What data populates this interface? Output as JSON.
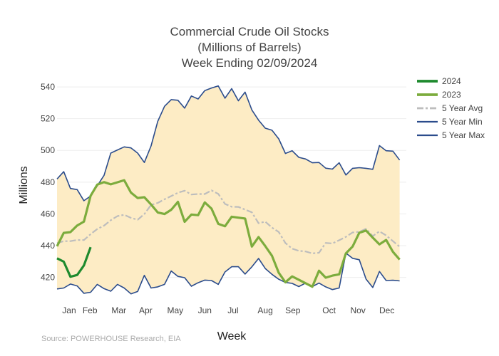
{
  "chart_data": {
    "type": "line",
    "title_lines": [
      "Commercial Crude Oil Stocks",
      "(Millions of Barrels)",
      "Week Ending 02/09/2024"
    ],
    "xlabel": "Week",
    "ylabel": "Millions",
    "source": "Source: POWERHOUSE Research, EIA",
    "x_tick_labels": [
      "Jan",
      "Feb",
      "Mar",
      "Apr",
      "May",
      "Jun",
      "Jul",
      "Aug",
      "Sep",
      "Oct",
      "Nov",
      "Dec"
    ],
    "y_ticks": [
      420,
      440,
      460,
      480,
      500,
      520,
      540
    ],
    "ylim": [
      405,
      549
    ],
    "xlim": [
      1,
      53
    ],
    "grid": "horizontal",
    "legend_position": "top-right",
    "x_unit": "week",
    "band": {
      "lower": "5 Year Min",
      "upper": "5 Year Max",
      "color": "#fdecc5"
    },
    "series": [
      {
        "name": "2024",
        "color": "#1e8a2e",
        "dash": "solid",
        "width": 3.2,
        "x": [
          1,
          2,
          3,
          4,
          5,
          6
        ],
        "values": [
          432.0,
          429.9,
          420.4,
          421.5,
          427.5,
          439.0
        ]
      },
      {
        "name": "2023",
        "color": "#7cac3d",
        "dash": "solid",
        "width": 3.2,
        "x": [
          1,
          2,
          3,
          4,
          5,
          6,
          7,
          8,
          9,
          10,
          11,
          12,
          13,
          14,
          15,
          16,
          17,
          18,
          19,
          20,
          21,
          22,
          23,
          24,
          25,
          26,
          27,
          28,
          29,
          30,
          31,
          32,
          33,
          34,
          35,
          36,
          37,
          38,
          39,
          40,
          41,
          42,
          43,
          44,
          45,
          46,
          47,
          48,
          49,
          50,
          51,
          52
        ],
        "values": [
          439.6,
          448.0,
          448.5,
          452.7,
          455.1,
          471.4,
          478.5,
          480.0,
          478.6,
          479.9,
          481.2,
          473.4,
          470.0,
          470.5,
          465.9,
          460.9,
          459.9,
          462.6,
          467.6,
          455.0,
          459.6,
          459.2,
          467.2,
          463.3,
          453.7,
          452.2,
          458.2,
          457.6,
          457.1,
          439.4,
          445.4,
          439.7,
          433.6,
          422.9,
          416.9,
          420.6,
          418.5,
          416.3,
          414.1,
          424.2,
          419.8,
          421.1,
          421.9,
          435.1,
          439.4,
          448.1,
          449.5,
          445.0,
          440.8,
          443.6,
          436.1,
          431.2
        ]
      },
      {
        "name": "5 Year Avg",
        "color": "#bdbdbd",
        "dash": "dashdot",
        "width": 2.2,
        "x": [
          1,
          2,
          3,
          4,
          5,
          6,
          7,
          8,
          9,
          10,
          11,
          12,
          13,
          14,
          15,
          16,
          17,
          18,
          19,
          20,
          21,
          22,
          23,
          24,
          25,
          26,
          27,
          28,
          29,
          30,
          31,
          32,
          33,
          34,
          35,
          36,
          37,
          38,
          39,
          40,
          41,
          42,
          43,
          44,
          45,
          46,
          47,
          48,
          49,
          50,
          51,
          52
        ],
        "values": [
          441.6,
          442.8,
          442.8,
          443.6,
          443.5,
          447.2,
          450.5,
          452.6,
          456.0,
          458.6,
          459.4,
          457.5,
          456.3,
          459.9,
          465.6,
          466.9,
          469.2,
          471.2,
          473.3,
          474.6,
          472.2,
          472.5,
          472.5,
          474.8,
          472.6,
          466.3,
          464.5,
          464.4,
          462.7,
          461.0,
          454.1,
          455.1,
          451.4,
          448.6,
          441.6,
          438.1,
          436.7,
          436.3,
          435.1,
          435.5,
          441.7,
          441.4,
          443.4,
          445.5,
          448.3,
          448.7,
          450.6,
          446.0,
          449.0,
          446.4,
          442.8,
          439.3
        ]
      },
      {
        "name": "5 Year Min",
        "color": "#2b4c8c",
        "dash": "solid",
        "width": 1.6,
        "x": [
          1,
          2,
          3,
          4,
          5,
          6,
          7,
          8,
          9,
          10,
          11,
          12,
          13,
          14,
          15,
          16,
          17,
          18,
          19,
          20,
          21,
          22,
          23,
          24,
          25,
          26,
          27,
          28,
          29,
          30,
          31,
          32,
          33,
          34,
          35,
          36,
          37,
          38,
          39,
          40,
          41,
          42,
          43,
          44,
          45,
          46,
          47,
          48,
          49,
          50,
          51,
          52
        ],
        "values": [
          412.7,
          413.3,
          415.8,
          414.6,
          410.0,
          410.6,
          415.6,
          412.9,
          411.3,
          415.6,
          413.3,
          409.6,
          411.1,
          421.3,
          413.3,
          414.0,
          415.6,
          424.0,
          420.6,
          419.8,
          414.4,
          416.6,
          418.3,
          418.0,
          415.6,
          423.4,
          426.7,
          426.7,
          422.1,
          426.6,
          431.9,
          425.6,
          421.9,
          418.8,
          416.8,
          416.2,
          414.2,
          416.4,
          414.2,
          416.4,
          414.0,
          412.3,
          413.3,
          435.3,
          432.0,
          431.1,
          418.9,
          413.6,
          423.7,
          418.0,
          418.2,
          417.8
        ]
      },
      {
        "name": "5 Year Max",
        "color": "#2b4c8c",
        "dash": "solid",
        "width": 1.6,
        "x": [
          1,
          2,
          3,
          4,
          5,
          6,
          7,
          8,
          9,
          10,
          11,
          12,
          13,
          14,
          15,
          16,
          17,
          18,
          19,
          20,
          21,
          22,
          23,
          24,
          25,
          26,
          27,
          28,
          29,
          30,
          31,
          32,
          33,
          34,
          35,
          36,
          37,
          38,
          39,
          40,
          41,
          42,
          43,
          44,
          45,
          46,
          47,
          48,
          49,
          50,
          51,
          52
        ],
        "values": [
          482.0,
          486.6,
          476.0,
          475.3,
          468.3,
          471.2,
          477.7,
          484.3,
          498.3,
          500.3,
          502.2,
          501.6,
          498.3,
          492.4,
          502.8,
          518.3,
          527.8,
          532.0,
          531.6,
          526.6,
          534.3,
          532.4,
          537.7,
          539.3,
          540.6,
          532.9,
          538.9,
          531.3,
          536.7,
          525.5,
          519.1,
          514.0,
          512.7,
          507.3,
          498.1,
          499.8,
          495.6,
          494.6,
          492.2,
          492.4,
          488.8,
          488.2,
          492.2,
          484.5,
          488.7,
          489.1,
          488.7,
          488.1,
          503.0,
          499.8,
          499.5,
          493.9
        ]
      }
    ]
  }
}
